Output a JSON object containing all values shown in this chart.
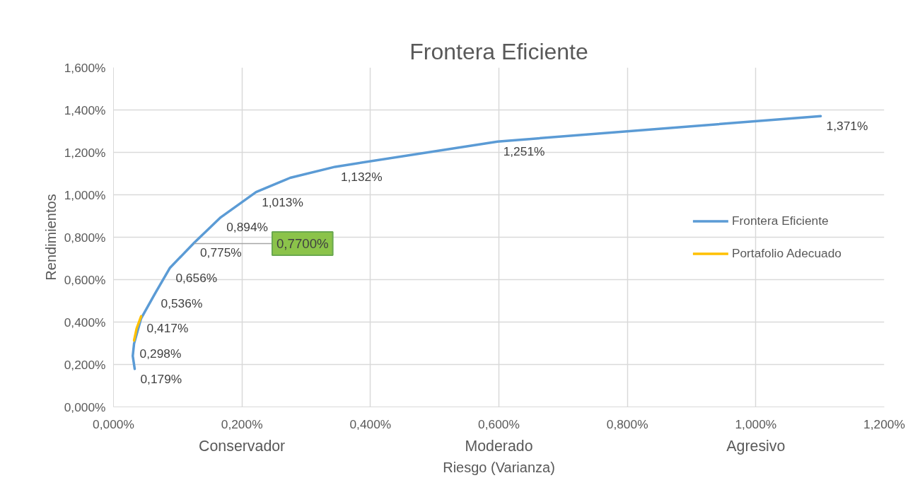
{
  "chart_data": {
    "type": "line",
    "title": "Frontera Eficiente",
    "xlabel": "Riesgo (Varianza)",
    "ylabel": "Rendimientos",
    "xlim": [
      0,
      1.2
    ],
    "ylim": [
      0,
      1.6
    ],
    "xticks": [
      {
        "value": 0,
        "label": "0,000%"
      },
      {
        "value": 0.2,
        "label": "0,200%"
      },
      {
        "value": 0.4,
        "label": "0,400%"
      },
      {
        "value": 0.6,
        "label": "0,600%"
      },
      {
        "value": 0.8,
        "label": "0,800%"
      },
      {
        "value": 1.0,
        "label": "1,000%"
      },
      {
        "value": 1.2,
        "label": "1,200%"
      }
    ],
    "yticks": [
      {
        "value": 0,
        "label": "0,000%"
      },
      {
        "value": 0.2,
        "label": "0,200%"
      },
      {
        "value": 0.4,
        "label": "0,400%"
      },
      {
        "value": 0.6,
        "label": "0,600%"
      },
      {
        "value": 0.8,
        "label": "0,800%"
      },
      {
        "value": 1.0,
        "label": "1,000%"
      },
      {
        "value": 1.2,
        "label": "1,200%"
      },
      {
        "value": 1.4,
        "label": "1,400%"
      },
      {
        "value": 1.6,
        "label": "1,600%"
      }
    ],
    "grid": true,
    "legend": "right",
    "marker": "none",
    "line_style": "solid",
    "series": [
      {
        "name": "Frontera Eficiente",
        "color": "#5b9bd5",
        "x": [
          0.033,
          0.03,
          0.032,
          0.043,
          0.065,
          0.088,
          0.126,
          0.167,
          0.222,
          0.275,
          0.345,
          0.598,
          1.101
        ],
        "values": [
          0.179,
          0.24,
          0.298,
          0.417,
          0.536,
          0.656,
          0.775,
          0.894,
          1.013,
          1.08,
          1.132,
          1.251,
          1.371
        ],
        "value_labels": [
          "0,179%",
          null,
          "0,298%",
          "0,417%",
          "0,536%",
          "0,656%",
          "0,775%",
          "0,894%",
          "1,013%",
          null,
          "1,132%",
          "1,251%",
          "1,371%"
        ]
      },
      {
        "name": "Portafolio Adecuado",
        "color": "#ffc000",
        "x": [
          0.032,
          0.036,
          0.043
        ],
        "values": [
          0.313,
          0.37,
          0.427
        ]
      }
    ],
    "annotations": [
      {
        "text": "0,7700%",
        "x": 0.126,
        "y": 0.77
      },
      "Conservador",
      "Moderado",
      "Agresivo"
    ]
  }
}
